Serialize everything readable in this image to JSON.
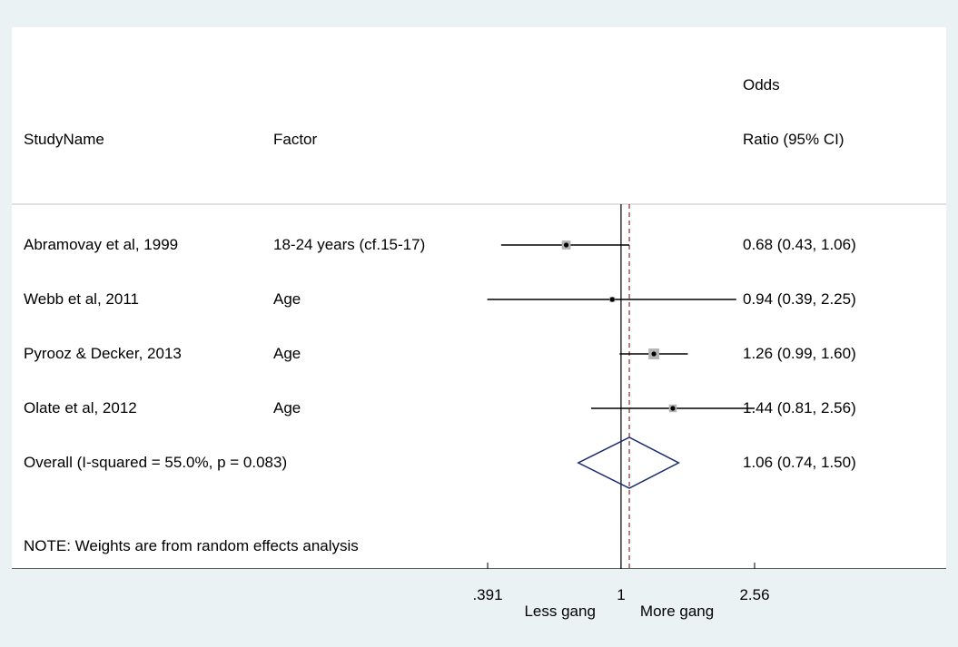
{
  "header": {
    "study_col": "StudyName",
    "factor_col": "Factor",
    "or_col_line1": "Odds",
    "or_col_line2": "Ratio (95% CI)"
  },
  "overall_label": "Overall  (I-squared = 55.0%, p = 0.083)",
  "note": "NOTE: Weights are from random effects analysis",
  "chart_data": {
    "type": "forest",
    "scale": "log",
    "null_value": 1,
    "pooled_estimate_line": 1.06,
    "xticks": [
      {
        "value": 0.391,
        "label": ".391"
      },
      {
        "value": 1,
        "label": "1"
      },
      {
        "value": 2.56,
        "label": "2.56"
      }
    ],
    "direction_labels": {
      "left": "Less gang",
      "right": "More gang"
    },
    "studies": [
      {
        "name": "Abramovay et al, 1999",
        "factor": "18-24 years (cf.15-17)",
        "or": 0.68,
        "lo": 0.43,
        "hi": 1.06,
        "ci_text": "0.68 (0.43, 1.06)",
        "weight": 0.28
      },
      {
        "name": "Webb et al, 2011",
        "factor": "Age",
        "or": 0.94,
        "lo": 0.39,
        "hi": 2.25,
        "ci_text": "0.94 (0.39, 2.25)",
        "weight": 0.12
      },
      {
        "name": "Pyrooz & Decker, 2013",
        "factor": "Age",
        "or": 1.26,
        "lo": 0.99,
        "hi": 1.6,
        "ci_text": "1.26 (0.99, 1.60)",
        "weight": 0.37
      },
      {
        "name": "Olate et al, 2012",
        "factor": "Age",
        "or": 1.44,
        "lo": 0.81,
        "hi": 2.56,
        "ci_text": "1.44 (0.81, 2.56)",
        "weight": 0.23
      }
    ],
    "overall": {
      "or": 1.06,
      "lo": 0.74,
      "hi": 1.5,
      "ci_text": "1.06 (0.74, 1.50)"
    },
    "colors": {
      "ci_line": "#000000",
      "weight_box": "#b4b4b4",
      "diamond": "#1a2a6c",
      "pooled_line": "#8b2b2b",
      "null_line": "#000000"
    }
  }
}
